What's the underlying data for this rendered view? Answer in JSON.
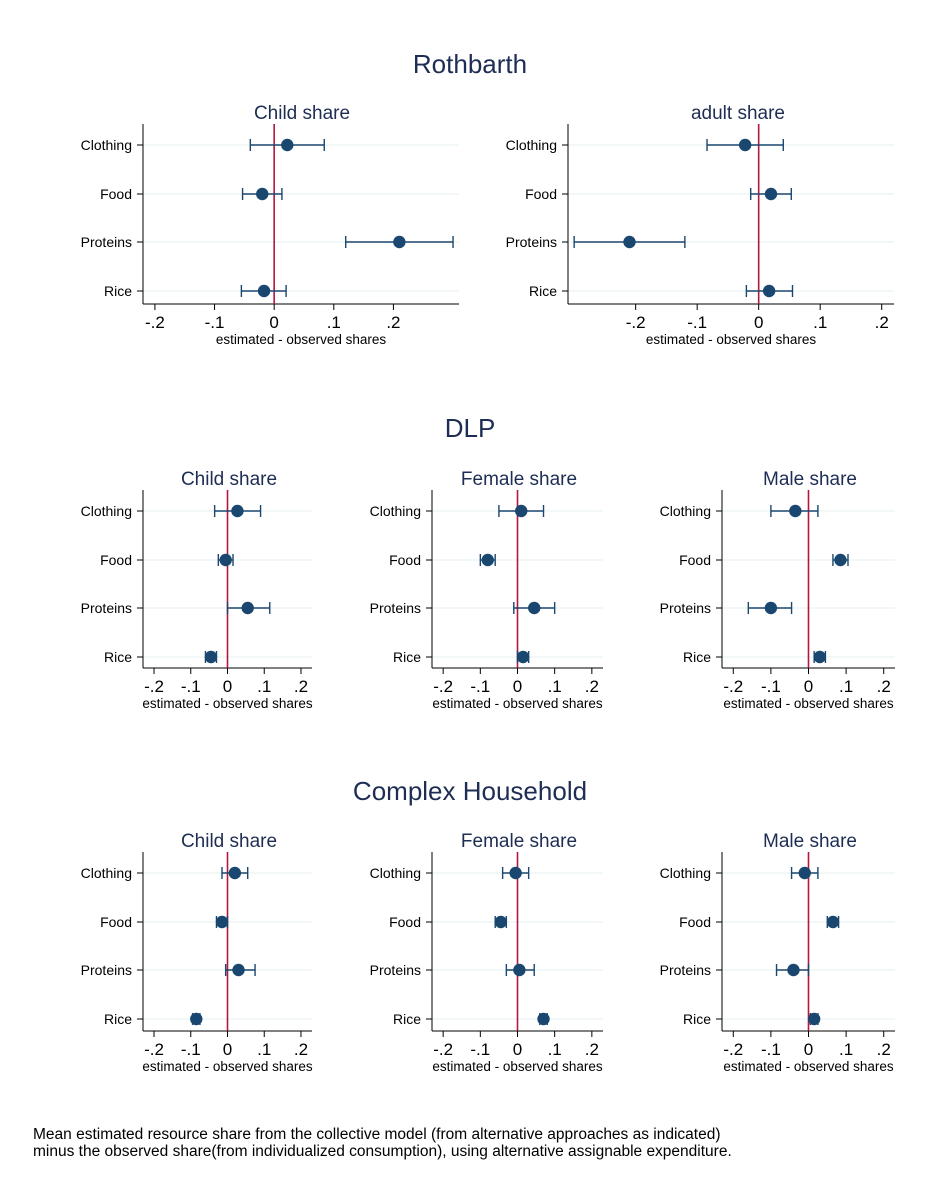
{
  "colors": {
    "marker": "#1a476f",
    "zero_line": "#b2173e",
    "grid": "#eaf2f3",
    "title": "#1e2d53",
    "text": "#000000"
  },
  "chart_data": [
    {
      "group_title": "Rothbarth",
      "panels": [
        {
          "type": "scatter",
          "subtype": "coefficient-plot-with-ci",
          "title": "Child share",
          "xlabel": "estimated - observed shares",
          "xlim": [
            -0.22,
            0.31
          ],
          "xticks": [
            "-.2",
            "-.1",
            "0",
            ".1",
            ".2"
          ],
          "xtick_values": [
            -0.2,
            -0.1,
            0,
            0.1,
            0.2
          ],
          "reference_line": 0,
          "categories": [
            "Clothing",
            "Food",
            "Proteins",
            "Rice"
          ],
          "values": [
            0.022,
            -0.02,
            0.21,
            -0.017
          ],
          "ci_low": [
            -0.04,
            -0.053,
            0.12,
            -0.055
          ],
          "ci_high": [
            0.084,
            0.013,
            0.3,
            0.02
          ]
        },
        {
          "type": "scatter",
          "subtype": "coefficient-plot-with-ci",
          "title": "adult share",
          "xlabel": "estimated - observed shares",
          "xlim": [
            -0.31,
            0.22
          ],
          "xticks": [
            "-.2",
            "-.1",
            "0",
            ".1",
            ".2"
          ],
          "xtick_values": [
            -0.2,
            -0.1,
            0,
            0.1,
            0.2
          ],
          "reference_line": 0,
          "categories": [
            "Clothing",
            "Food",
            "Proteins",
            "Rice"
          ],
          "values": [
            -0.022,
            0.02,
            -0.21,
            0.017
          ],
          "ci_low": [
            -0.084,
            -0.013,
            -0.3,
            -0.02
          ],
          "ci_high": [
            0.04,
            0.053,
            -0.12,
            0.055
          ]
        }
      ]
    },
    {
      "group_title": "DLP",
      "panels": [
        {
          "type": "scatter",
          "subtype": "coefficient-plot-with-ci",
          "title": "Child share",
          "xlabel": "estimated - observed shares",
          "xlim": [
            -0.23,
            0.23
          ],
          "xticks": [
            "-.2",
            "-.1",
            "0",
            ".1",
            ".2"
          ],
          "xtick_values": [
            -0.2,
            -0.1,
            0,
            0.1,
            0.2
          ],
          "reference_line": 0,
          "categories": [
            "Clothing",
            "Food",
            "Proteins",
            "Rice"
          ],
          "values": [
            0.027,
            -0.005,
            0.055,
            -0.045
          ],
          "ci_low": [
            -0.035,
            -0.025,
            0.0,
            -0.06
          ],
          "ci_high": [
            0.09,
            0.015,
            0.115,
            -0.03
          ]
        },
        {
          "type": "scatter",
          "subtype": "coefficient-plot-with-ci",
          "title": "Female share",
          "xlabel": "estimated - observed shares",
          "xlim": [
            -0.23,
            0.23
          ],
          "xticks": [
            "-.2",
            "-.1",
            "0",
            ".1",
            ".2"
          ],
          "xtick_values": [
            -0.2,
            -0.1,
            0,
            0.1,
            0.2
          ],
          "reference_line": 0,
          "categories": [
            "Clothing",
            "Food",
            "Proteins",
            "Rice"
          ],
          "values": [
            0.01,
            -0.08,
            0.045,
            0.015
          ],
          "ci_low": [
            -0.05,
            -0.1,
            -0.01,
            0.0
          ],
          "ci_high": [
            0.07,
            -0.06,
            0.1,
            0.03
          ]
        },
        {
          "type": "scatter",
          "subtype": "coefficient-plot-with-ci",
          "title": "Male share",
          "xlabel": "estimated - observed shares",
          "xlim": [
            -0.23,
            0.23
          ],
          "xticks": [
            "-.2",
            "-.1",
            "0",
            ".1",
            ".2"
          ],
          "xtick_values": [
            -0.2,
            -0.1,
            0,
            0.1,
            0.2
          ],
          "reference_line": 0,
          "categories": [
            "Clothing",
            "Food",
            "Proteins",
            "Rice"
          ],
          "values": [
            -0.035,
            0.085,
            -0.1,
            0.03
          ],
          "ci_low": [
            -0.1,
            0.065,
            -0.16,
            0.015
          ],
          "ci_high": [
            0.025,
            0.105,
            -0.045,
            0.045
          ]
        }
      ]
    },
    {
      "group_title": "Complex Household",
      "panels": [
        {
          "type": "scatter",
          "subtype": "coefficient-plot-with-ci",
          "title": "Child share",
          "xlabel": "estimated - observed shares",
          "xlim": [
            -0.23,
            0.23
          ],
          "xticks": [
            "-.2",
            "-.1",
            "0",
            ".1",
            ".2"
          ],
          "xtick_values": [
            -0.2,
            -0.1,
            0,
            0.1,
            0.2
          ],
          "reference_line": 0,
          "categories": [
            "Clothing",
            "Food",
            "Proteins",
            "Rice"
          ],
          "values": [
            0.02,
            -0.015,
            0.03,
            -0.085
          ],
          "ci_low": [
            -0.015,
            -0.03,
            -0.005,
            -0.095
          ],
          "ci_high": [
            0.055,
            0.0,
            0.075,
            -0.075
          ]
        },
        {
          "type": "scatter",
          "subtype": "coefficient-plot-with-ci",
          "title": "Female share",
          "xlabel": "estimated - observed shares",
          "xlim": [
            -0.23,
            0.23
          ],
          "xticks": [
            "-.2",
            "-.1",
            "0",
            ".1",
            ".2"
          ],
          "xtick_values": [
            -0.2,
            -0.1,
            0,
            0.1,
            0.2
          ],
          "reference_line": 0,
          "categories": [
            "Clothing",
            "Food",
            "Proteins",
            "Rice"
          ],
          "values": [
            -0.005,
            -0.045,
            0.005,
            0.07
          ],
          "ci_low": [
            -0.04,
            -0.06,
            -0.03,
            0.06
          ],
          "ci_high": [
            0.03,
            -0.03,
            0.045,
            0.08
          ]
        },
        {
          "type": "scatter",
          "subtype": "coefficient-plot-with-ci",
          "title": "Male share",
          "xlabel": "estimated - observed shares",
          "xlim": [
            -0.23,
            0.23
          ],
          "xticks": [
            "-.2",
            "-.1",
            "0",
            ".1",
            ".2"
          ],
          "xtick_values": [
            -0.2,
            -0.1,
            0,
            0.1,
            0.2
          ],
          "reference_line": 0,
          "categories": [
            "Clothing",
            "Food",
            "Proteins",
            "Rice"
          ],
          "values": [
            -0.01,
            0.065,
            -0.04,
            0.015
          ],
          "ci_low": [
            -0.045,
            0.05,
            -0.085,
            0.005
          ],
          "ci_high": [
            0.025,
            0.08,
            0.0,
            0.025
          ]
        }
      ]
    }
  ],
  "caption": {
    "line1": "Mean estimated resource share from the collective model (from alternative approaches as indicated)",
    "line2": "minus the observed share(from individualized consumption), using alternative assignable expenditure."
  }
}
